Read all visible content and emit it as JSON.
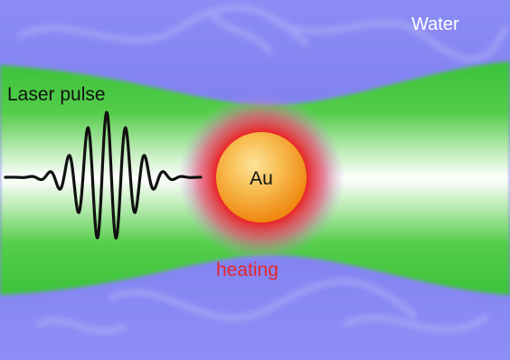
{
  "labels": {
    "water": "Water",
    "laser_pulse": "Laser pulse",
    "au": "Au",
    "heating": "heating"
  },
  "colors": {
    "water_blue": "#7b7cf0",
    "beam_green": "#3fc43a",
    "beam_core": "#ffffff",
    "heating_red": "#e8282a",
    "particle_orange": "#f39a1e",
    "particle_light": "#fbd27a",
    "text_white": "#ffffff",
    "text_black": "#111111",
    "text_red": "#e8242a"
  }
}
